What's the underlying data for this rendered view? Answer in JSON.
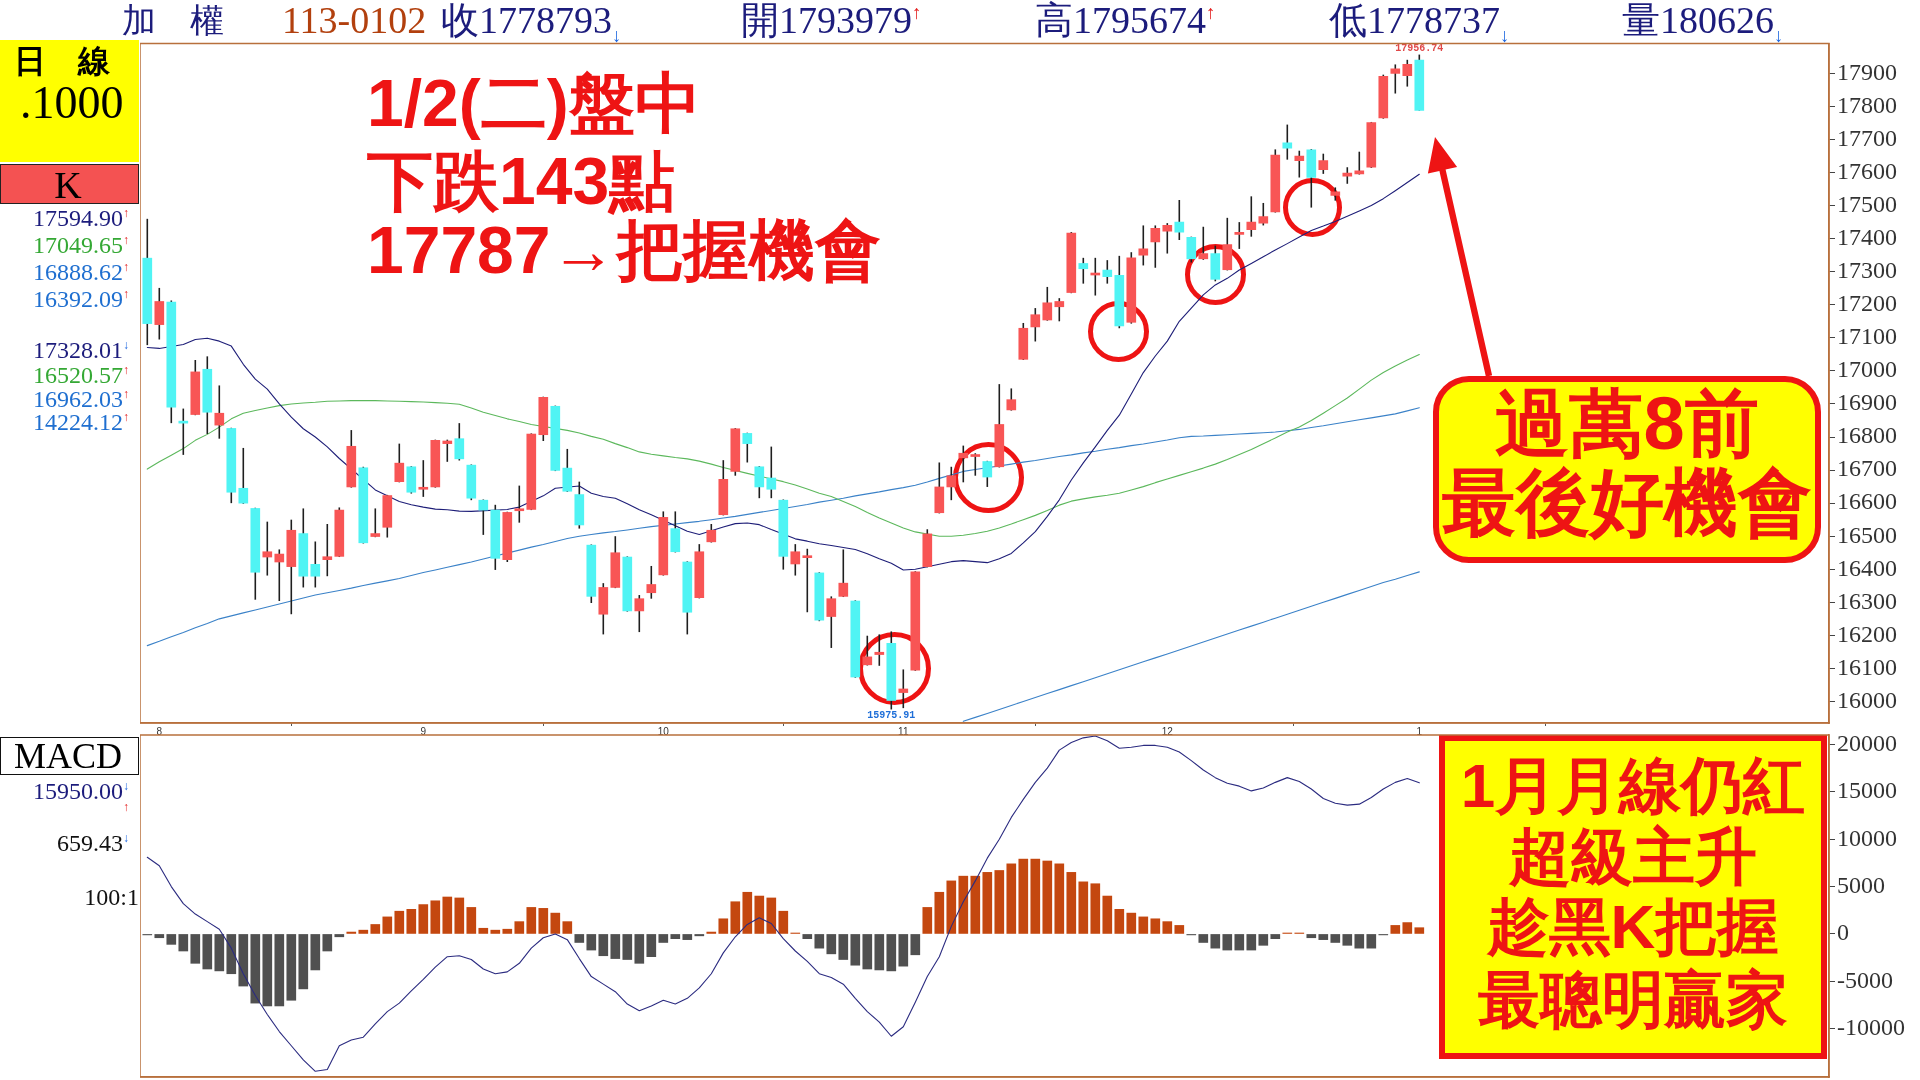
{
  "chart_data": [
    {
      "type": "candlestick",
      "categories": [
        null,
        "8",
        null,
        null,
        null,
        null,
        null,
        null,
        null,
        null,
        null,
        null,
        null,
        null,
        null,
        null,
        null,
        null,
        null,
        null,
        null,
        null,
        null,
        "9",
        null,
        null,
        null,
        null,
        null,
        null,
        null,
        null,
        null,
        null,
        null,
        null,
        null,
        null,
        null,
        null,
        null,
        null,
        null,
        "10",
        null,
        null,
        null,
        null,
        null,
        null,
        null,
        null,
        null,
        null,
        null,
        null,
        null,
        null,
        null,
        null,
        null,
        null,
        null,
        "11",
        null,
        null,
        null,
        null,
        null,
        null,
        null,
        null,
        null,
        null,
        null,
        null,
        null,
        null,
        null,
        null,
        null,
        null,
        null,
        null,
        null,
        "12",
        null,
        null,
        null,
        null,
        null,
        null,
        null,
        null,
        null,
        null,
        null,
        null,
        null,
        null,
        null,
        null,
        null,
        null,
        null,
        null,
        "1"
      ],
      "ohlc": [
        [
          17341,
          17460,
          17078,
          17143
        ],
        [
          17140,
          17251,
          17095,
          17210
        ],
        [
          17208,
          17213,
          16842,
          16890
        ],
        [
          16848,
          16886,
          16746,
          16842
        ],
        [
          16868,
          17033,
          16866,
          16997
        ],
        [
          17005,
          17044,
          16809,
          16875
        ],
        [
          16836,
          16956,
          16795,
          16872
        ],
        [
          16826,
          16828,
          16600,
          16633
        ],
        [
          16645,
          16767,
          16598,
          16600
        ],
        [
          16584,
          16586,
          16308,
          16391
        ],
        [
          16437,
          16544,
          16381,
          16453
        ],
        [
          16422,
          16460,
          16304,
          16446
        ],
        [
          16408,
          16550,
          16264,
          16518
        ],
        [
          16508,
          16584,
          16345,
          16379
        ],
        [
          16415,
          16484,
          16345,
          16379
        ],
        [
          16429,
          16537,
          16379,
          16438
        ],
        [
          16439,
          16587,
          16437,
          16579
        ],
        [
          16649,
          16821,
          16647,
          16772
        ],
        [
          16707,
          16710,
          16478,
          16480
        ],
        [
          16499,
          16584,
          16497,
          16508
        ],
        [
          16527,
          16625,
          16496,
          16623
        ],
        [
          16665,
          16780,
          16663,
          16721
        ],
        [
          16710,
          16712,
          16629,
          16633
        ],
        [
          16642,
          16730,
          16619,
          16645
        ],
        [
          16649,
          16792,
          16647,
          16790
        ],
        [
          16780,
          16792,
          16725,
          16788
        ],
        [
          16795,
          16842,
          16729,
          16734
        ],
        [
          16715,
          16717,
          16609,
          16615
        ],
        [
          16609,
          16611,
          16504,
          16579
        ],
        [
          16579,
          16595,
          16398,
          16433
        ],
        [
          16429,
          16574,
          16422,
          16572
        ],
        [
          16577,
          16653,
          16541,
          16581
        ],
        [
          16581,
          16811,
          16579,
          16809
        ],
        [
          16807,
          16922,
          16788,
          16920
        ],
        [
          16893,
          16895,
          16697,
          16699
        ],
        [
          16706,
          16764,
          16634,
          16636
        ],
        [
          16626,
          16665,
          16523,
          16534
        ],
        [
          16473,
          16475,
          16298,
          16318
        ],
        [
          16264,
          16358,
          16203,
          16345
        ],
        [
          16345,
          16500,
          16343,
          16450
        ],
        [
          16437,
          16439,
          16272,
          16274
        ],
        [
          16274,
          16322,
          16210,
          16311
        ],
        [
          16329,
          16410,
          16311,
          16354
        ],
        [
          16383,
          16575,
          16381,
          16557
        ],
        [
          16523,
          16575,
          16451,
          16453
        ],
        [
          16422,
          16424,
          16203,
          16270
        ],
        [
          16314,
          16476,
          16312,
          16453
        ],
        [
          16483,
          16537,
          16481,
          16518
        ],
        [
          16565,
          16730,
          16563,
          16672
        ],
        [
          16696,
          16827,
          16683,
          16825
        ],
        [
          16811,
          16813,
          16723,
          16780
        ],
        [
          16710,
          16712,
          16615,
          16649
        ],
        [
          16676,
          16771,
          16615,
          16642
        ],
        [
          16609,
          16611,
          16399,
          16439
        ],
        [
          16416,
          16476,
          16381,
          16453
        ],
        [
          16435,
          16462,
          16270,
          16439
        ],
        [
          16389,
          16391,
          16243,
          16246
        ],
        [
          16257,
          16318,
          16162,
          16311
        ],
        [
          16318,
          16460,
          16316,
          16358
        ],
        [
          16304,
          16306,
          16072,
          16074
        ],
        [
          16111,
          16199,
          16109,
          16135
        ],
        [
          16142,
          16203,
          16108,
          16149
        ],
        [
          16176,
          16212,
          15975.91,
          16003
        ],
        [
          16027,
          16097,
          15980,
          16038
        ],
        [
          16095,
          16394,
          16093,
          16392
        ],
        [
          16408,
          16521,
          16406,
          16507
        ],
        [
          16571,
          16723,
          16569,
          16649
        ],
        [
          16649,
          16710,
          16609,
          16683
        ],
        [
          16737,
          16774,
          16663,
          16751
        ],
        [
          16741,
          16751,
          16683,
          16744
        ],
        [
          16726,
          16728,
          16649,
          16679
        ],
        [
          16710,
          16960,
          16708,
          16838
        ],
        [
          16882,
          16947,
          16880,
          16913
        ],
        [
          17035,
          17145,
          17033,
          17129
        ],
        [
          17133,
          17190,
          17089,
          17170
        ],
        [
          17154,
          17254,
          17152,
          17206
        ],
        [
          17194,
          17220,
          17150,
          17210
        ],
        [
          17237,
          17420,
          17235,
          17417
        ],
        [
          17325,
          17342,
          17264,
          17309
        ],
        [
          17290,
          17342,
          17228,
          17294
        ],
        [
          17305,
          17335,
          17264,
          17285
        ],
        [
          17289,
          17348,
          17129,
          17136
        ],
        [
          17147,
          17359,
          17143,
          17342
        ],
        [
          17350,
          17440,
          17319,
          17369
        ],
        [
          17390,
          17440,
          17312,
          17431
        ],
        [
          17423,
          17447,
          17355,
          17440
        ],
        [
          17450,
          17517,
          17396,
          17420
        ],
        [
          17404,
          17406,
          17328,
          17339
        ],
        [
          17339,
          17436,
          17336,
          17355
        ],
        [
          17355,
          17379,
          17271,
          17277
        ],
        [
          17306,
          17463,
          17304,
          17382
        ],
        [
          17413,
          17450,
          17369,
          17417
        ],
        [
          17427,
          17528,
          17406,
          17450
        ],
        [
          17447,
          17508,
          17440,
          17467
        ],
        [
          17481,
          17670,
          17479,
          17653
        ],
        [
          17690,
          17745,
          17639,
          17674
        ],
        [
          17636,
          17666,
          17585,
          17650
        ],
        [
          17669,
          17671,
          17494,
          17585
        ],
        [
          17609,
          17657,
          17596,
          17636
        ],
        [
          17531,
          17555,
          17515,
          17542
        ],
        [
          17589,
          17616,
          17566,
          17598
        ],
        [
          17596,
          17663,
          17594,
          17605
        ],
        [
          17616,
          17753,
          17614,
          17751
        ],
        [
          17765,
          17896,
          17763,
          17891
        ],
        [
          17900,
          17927,
          17839,
          17914
        ],
        [
          17893,
          17941,
          17860,
          17927
        ],
        [
          17939.79,
          17956.74,
          17787.37,
          17787.93
        ]
      ],
      "colors": [
        "#50f4f4",
        "#f85555",
        "#50f4f4",
        "#50f4f4",
        "#f85555",
        "#50f4f4",
        "#f85555",
        "#50f4f4",
        "#50f4f4",
        "#50f4f4",
        "#f85555",
        "#f85555",
        "#f85555",
        "#50f4f4",
        "#50f4f4",
        "#f85555",
        "#f85555",
        "#f85555",
        "#50f4f4",
        "#f85555",
        "#f85555",
        "#f85555",
        "#50f4f4",
        "#f85555",
        "#f85555",
        "#f85555",
        "#50f4f4",
        "#50f4f4",
        "#50f4f4",
        "#50f4f4",
        "#f85555",
        "#f85555",
        "#f85555",
        "#f85555",
        "#50f4f4",
        "#50f4f4",
        "#50f4f4",
        "#50f4f4",
        "#f85555",
        "#f85555",
        "#50f4f4",
        "#f85555",
        "#f85555",
        "#f85555",
        "#50f4f4",
        "#50f4f4",
        "#f85555",
        "#f85555",
        "#f85555",
        "#f85555",
        "#50f4f4",
        "#50f4f4",
        "#50f4f4",
        "#50f4f4",
        "#f85555",
        "#f85555",
        "#50f4f4",
        "#f85555",
        "#f85555",
        "#50f4f4",
        "#f85555",
        "#f85555",
        "#50f4f4",
        "#f85555",
        "#f85555",
        "#f85555",
        "#f85555",
        "#f85555",
        "#f85555",
        "#f85555",
        "#50f4f4",
        "#f85555",
        "#f85555",
        "#f85555",
        "#f85555",
        "#f85555",
        "#f85555",
        "#f85555",
        "#50f4f4",
        "#f85555",
        "#50f4f4",
        "#50f4f4",
        "#f85555",
        "#f85555",
        "#f85555",
        "#f85555",
        "#50f4f4",
        "#50f4f4",
        "#f85555",
        "#50f4f4",
        "#f85555",
        "#f85555",
        "#f85555",
        "#f85555",
        "#f85555",
        "#50f4f4",
        "#f85555",
        "#50f4f4",
        "#f85555",
        "#f85555",
        "#f85555",
        "#f85555",
        "#f85555",
        "#f85555",
        "#f85555",
        "#f85555",
        "#50f4f4"
      ],
      "series": [
        {
          "type": "line",
          "color": "#1e1e78",
          "values": [
            17071,
            17068,
            null,
            17080,
            17095,
            17099,
            17090,
            17075,
            17020,
            16975,
            16945,
            16900,
            16860,
            16825,
            16800,
            16770,
            16735,
            null,
            null,
            16640,
            null,
            16605,
            16595,
            16588,
            16582,
            16580,
            16576,
            16575,
            null,
            null,
            16581,
            16588,
            null,
            16622,
            16645,
            null,
            16652,
            16630,
            16620,
            16615,
            16598,
            16580,
            16565,
            null,
            null,
            16515,
            16505,
            null,
            16528,
            16538,
            16540,
            16535,
            16520,
            null,
            16492,
            16485,
            16477,
            16472,
            16466,
            16460,
            16447,
            16432,
            16418,
            16398,
            16400,
            null,
            16415,
            16423,
            16426,
            16423,
            16420,
            16432,
            16448,
            16480,
            16514,
            16560,
            16610,
            16670,
            16722,
            16770,
            16820,
            16866,
            16930,
            16995,
            17045,
            17090,
            17150,
            17190,
            17230,
            17260,
            17280,
            17305,
            17325,
            17345,
            17366,
            17385,
            17405,
            17425,
            17438,
            17452,
            17468,
            17484,
            17500,
            17521,
            17545,
            17570,
            17594.9
          ]
        },
        {
          "type": "line",
          "color": "#5cb85c",
          "values": [
            16703,
            16725,
            16745,
            16765,
            16790,
            16808,
            16830,
            16855,
            16872,
            16880,
            16888,
            16895,
            16900,
            16903,
            16905,
            16908,
            16909,
            16910,
            16910,
            16910,
            16909,
            16908,
            16907,
            16906,
            16904,
            16902,
            16899,
            16888,
            16875,
            16865,
            16855,
            16847,
            16838,
            null,
            null,
            16820,
            16812,
            16802,
            16793,
            16780,
            16768,
            16755,
            16748,
            16743,
            16738,
            16734,
            16727,
            16718,
            16708,
            null,
            16690,
            null,
            null,
            16665,
            16655,
            16643,
            16630,
            16620,
            16605,
            16590,
            16572,
            16555,
            16540,
            16525,
            16513,
            null,
            16500,
            16500,
            16503,
            16508,
            16515,
            16525,
            16537,
            16550,
            16563,
            16578,
            16594,
            16606,
            16613,
            16619,
            16624,
            16630,
            16640,
            16650,
            16662,
            16673,
            16684,
            16695,
            16706,
            16718,
            16732,
            16747,
            16762,
            16780,
            16797,
            16815,
            16830,
            16850,
            16872,
            16895,
            16918,
            16945,
            16972,
            16995,
            17015,
            17033,
            17049.65
          ]
        },
        {
          "type": "line",
          "color": "#3b82c8",
          "values": [
            16169,
            16182,
            16196,
            16209,
            16223,
            16236,
            16250,
            16259,
            16268,
            16277,
            16286,
            16295,
            16304,
            16313,
            16322,
            16329,
            16336,
            16343,
            16351,
            16358,
            16365,
            16372,
            16381,
            16390,
            16398,
            16406,
            16414,
            16422,
            16431,
            null,
            null,
            16458,
            16467,
            16475,
            16484,
            16493,
            16500,
            16505,
            16510,
            16514,
            16519,
            16524,
            16529,
            null,
            16537,
            16541,
            16545,
            16550,
            16555,
            16560,
            16566,
            16572,
            16578,
            null,
            16590,
            16596,
            16603,
            16609,
            16615,
            16622,
            16628,
            16634,
            16641,
            16647,
            16654,
            16664,
            16675,
            null,
            16696,
            16702,
            null,
            null,
            16718,
            16724,
            16729,
            16735,
            16741,
            16746,
            16752,
            16757,
            16763,
            16768,
            16774,
            16779,
            16785,
            16791,
            16798,
            16802,
            16803,
            16805,
            16807,
            16809,
            16811,
            16813,
            16815,
            16819,
            16823,
            16829,
            16834,
            16840,
            16846,
            16852,
            16858,
            16864,
            16870,
            16879,
            16888.62
          ]
        },
        {
          "type": "line",
          "color": "#3b82c8",
          "values": [
            null,
            null,
            null,
            null,
            null,
            null,
            null,
            null,
            null,
            null,
            null,
            null,
            null,
            null,
            null,
            null,
            null,
            null,
            null,
            null,
            null,
            null,
            null,
            null,
            null,
            null,
            null,
            null,
            null,
            null,
            null,
            null,
            null,
            null,
            null,
            null,
            null,
            null,
            null,
            null,
            null,
            null,
            null,
            null,
            null,
            null,
            null,
            null,
            null,
            null,
            null,
            null,
            null,
            null,
            null,
            null,
            null,
            null,
            null,
            null,
            null,
            null,
            null,
            null,
            null,
            null,
            null,
            null,
            15940,
            15952,
            15964,
            15976,
            15988,
            16000,
            16012,
            16024,
            16036,
            16048,
            16060,
            16072,
            16084,
            16096,
            16108,
            16120,
            16132,
            16144,
            16156,
            16168,
            16180,
            16192,
            16204,
            16216,
            16228,
            16240,
            16252,
            16264,
            16276,
            16288,
            16300,
            16312,
            16324,
            16336,
            16348,
            16360,
            16370,
            16381,
            16392.09
          ]
        }
      ],
      "ylim": [
        15935,
        17990
      ],
      "yticks": [
        16000,
        16100,
        16200,
        16300,
        16400,
        16500,
        16600,
        16700,
        16800,
        16900,
        17000,
        17100,
        17200,
        17300,
        17400,
        17500,
        17600,
        17700,
        17800,
        17900
      ],
      "annotations": [
        "加　權",
        "113-0102",
        "收1778793$_{↓}$",
        "開1793979$^{↑}$",
        "高1795674$^{↑}$",
        "低1778737$_{↓}$",
        "量180626$_{↓}$",
        "日　線",
        ".1000",
        "K",
        "17594.90$^{↑}$",
        "17049.65$^{↑}$",
        "16888.62$^{↑}$",
        "16392.09$^{↑}$",
        "17328.01$^{↓}$",
        "16520.57$^{↑}$",
        "16962.03$^{↑}$",
        "14224.12$^{↑}$",
        "1/2(二)盤中",
        "下跌143點",
        "17787→把握機會",
        "過萬8前",
        "最後好機會",
        {
          "text": "17956.74",
          "x": "1",
          "y": 17956.74
        },
        {
          "text": "15975.91",
          "y": 15975.91
        }
      ]
    },
    {
      "type": "bar",
      "categories": [
        null,
        null,
        null,
        null,
        null,
        null,
        null,
        null,
        null,
        null,
        null,
        null,
        null,
        null,
        null,
        null,
        null,
        null,
        null,
        null,
        null,
        null,
        null,
        null,
        null,
        null,
        null,
        null,
        null,
        null,
        null,
        null,
        null,
        null,
        null,
        null,
        null,
        null,
        null,
        null,
        null,
        null,
        null,
        null,
        null,
        null,
        null,
        null,
        null,
        null,
        null,
        null,
        null,
        null,
        null,
        null,
        null,
        null,
        null,
        null,
        null,
        null,
        null,
        null,
        null,
        null,
        null,
        null,
        null,
        null,
        null,
        null,
        null,
        null,
        null,
        null,
        null,
        null,
        null,
        null,
        null,
        null,
        null,
        null,
        null,
        null,
        null,
        null,
        null,
        null,
        null,
        null,
        null,
        null,
        null,
        null,
        null,
        null,
        null,
        null,
        null,
        null,
        null,
        null,
        null,
        null,
        null
      ],
      "series": [
        {
          "type": "bar",
          "colors": [
            "#505050",
            "#505050",
            "#505050",
            "#505050",
            "#505050",
            "#505050",
            "#505050",
            "#505050",
            "#505050",
            "#505050",
            "#505050",
            "#505050",
            "#505050",
            "#505050",
            "#505050",
            "#505050",
            "#505050",
            "#c4470f",
            "#c4470f",
            "#c4470f",
            "#c4470f",
            "#c4470f",
            "#c4470f",
            "#c4470f",
            "#c4470f",
            "#c4470f",
            "#c4470f",
            "#c4470f",
            "#c4470f",
            "#c4470f",
            "#c4470f",
            "#c4470f",
            "#c4470f",
            "#c4470f",
            "#c4470f",
            "#c4470f",
            "#505050",
            "#505050",
            "#505050",
            "#505050",
            "#505050",
            "#505050",
            "#505050",
            "#505050",
            "#505050",
            "#505050",
            "#505050",
            "#c4470f",
            "#c4470f",
            "#c4470f",
            "#c4470f",
            "#c4470f",
            "#c4470f",
            "#c4470f",
            "#c4470f",
            "#505050",
            "#505050",
            "#505050",
            "#505050",
            "#505050",
            "#505050",
            "#505050",
            "#505050",
            "#505050",
            "#505050",
            "#c4470f",
            "#c4470f",
            "#c4470f",
            "#c4470f",
            "#c4470f",
            "#c4470f",
            "#c4470f",
            "#c4470f",
            "#c4470f",
            "#c4470f",
            "#c4470f",
            "#c4470f",
            "#c4470f",
            "#c4470f",
            "#c4470f",
            "#c4470f",
            "#c4470f",
            "#c4470f",
            "#c4470f",
            "#c4470f",
            "#c4470f",
            "#c4470f",
            "#505050",
            "#505050",
            "#505050",
            "#505050",
            "#505050",
            "#505050",
            "#505050",
            "#505050",
            "#c4470f",
            "#c4470f",
            "#505050",
            "#505050",
            "#505050",
            "#505050",
            "#505050",
            "#505050",
            "#505050",
            "#c4470f",
            "#c4470f",
            "#c4470f"
          ],
          "values": [
            -100,
            -400,
            -1100,
            -1800,
            -3100,
            -3700,
            -3900,
            -4200,
            -5500,
            -7300,
            -7600,
            -7600,
            -7000,
            -5800,
            -3800,
            -1800,
            -300,
            200,
            400,
            1000,
            1800,
            2400,
            2600,
            3100,
            3500,
            3900,
            3800,
            2800,
            600,
            400,
            500,
            1300,
            2800,
            2700,
            2200,
            1300,
            -900,
            -1700,
            -2300,
            -2600,
            -2700,
            -3100,
            -2400,
            -900,
            -500,
            -600,
            -200,
            200,
            1600,
            3400,
            4400,
            4000,
            3800,
            2400,
            100,
            -500,
            -1500,
            -2100,
            -2700,
            -3300,
            -3700,
            -3800,
            -3900,
            -3400,
            -2200,
            2800,
            4400,
            5600,
            6100,
            6100,
            6500,
            6700,
            7400,
            7900,
            7900,
            7700,
            7400,
            6500,
            5500,
            5300,
            4000,
            2600,
            2200,
            1800,
            1600,
            1300,
            900,
            -100,
            -900,
            -1500,
            -1700,
            -1700,
            -1700,
            -1200,
            -500,
            100,
            100,
            -400,
            -600,
            -900,
            -1200,
            -1500,
            -1500,
            -100,
            900,
            1200,
            659.43
          ]
        },
        {
          "type": "line",
          "color": "#2b2b80",
          "values": [
            8100,
            7200,
            5000,
            3200,
            2100,
            1300,
            500,
            -1500,
            -4200,
            -6500,
            -8500,
            -10300,
            -11800,
            -13300,
            -14500,
            -14300,
            -11800,
            -11200,
            -10900,
            -9500,
            -8200,
            -7300,
            -6000,
            -4800,
            -3500,
            -2400,
            -2300,
            -2700,
            -3700,
            -4200,
            -4000,
            -3100,
            -1500,
            -400,
            0,
            -600,
            -2600,
            -4500,
            -5300,
            -6100,
            -7400,
            -8100,
            -7600,
            -7000,
            -7400,
            -6800,
            -5700,
            -4200,
            -2000,
            -300,
            1000,
            1700,
            1100,
            -500,
            -1800,
            -2900,
            -4200,
            -4600,
            -5300,
            -6800,
            -8200,
            -9300,
            -10800,
            -9800,
            -7200,
            -4500,
            -2400,
            800,
            3400,
            5600,
            8000,
            10000,
            12300,
            14200,
            16000,
            17500,
            19400,
            20200,
            20700,
            20900,
            20400,
            19600,
            19700,
            19900,
            19900,
            19700,
            19200,
            18300,
            17300,
            16500,
            15900,
            15600,
            15100,
            15400,
            16000,
            16500,
            16100,
            15300,
            14300,
            13800,
            13600,
            13700,
            14400,
            15300,
            16000,
            16400,
            15950
          ]
        }
      ],
      "ylim": [
        -15100,
        21000
      ],
      "yticks": [
        -10000,
        -5000,
        0,
        5000,
        10000,
        15000,
        20000
      ],
      "tick_labels": "y",
      "annotations": [
        "MACD",
        "15950.00$^{↓}$",
        "$^{↑}$",
        "659.43$^{↓}$",
        "100:1",
        "1月月線仍紅",
        "超級主升",
        "趁黑K把握",
        "最聰明贏家"
      ]
    }
  ]
}
